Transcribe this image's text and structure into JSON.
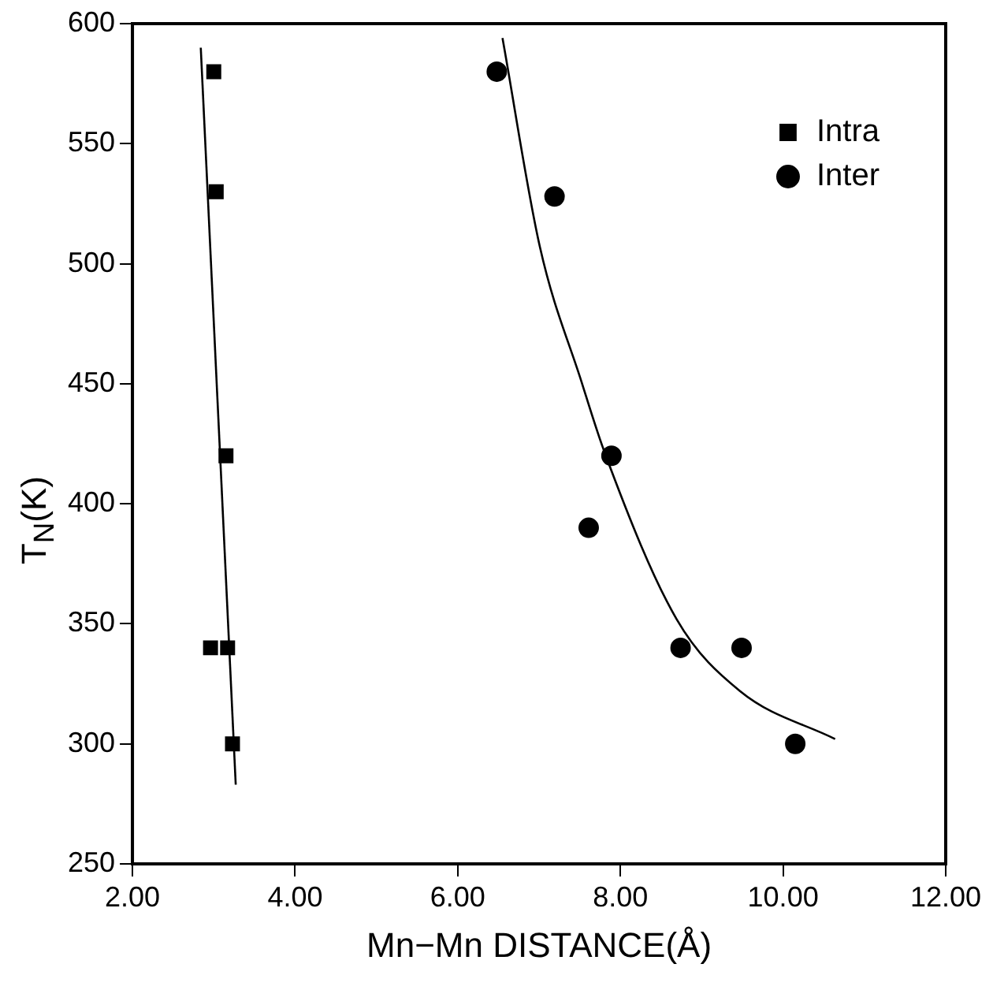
{
  "chart_data": {
    "type": "scatter",
    "xlabel": "Mn−Mn DISTANCE(Å)",
    "ylabel": "T$_{N}$(K)",
    "xlim": [
      2,
      12
    ],
    "ylim": [
      250,
      600
    ],
    "xticks": [
      {
        "value": 2,
        "label": "2.00"
      },
      {
        "value": 4,
        "label": "4.00"
      },
      {
        "value": 6,
        "label": "6.00"
      },
      {
        "value": 8,
        "label": "8.00"
      },
      {
        "value": 10,
        "label": "10.00"
      },
      {
        "value": 12,
        "label": "12.00"
      }
    ],
    "yticks": [
      250,
      300,
      350,
      400,
      450,
      500,
      550,
      600
    ],
    "grid": false,
    "legend": "top right",
    "series": [
      {
        "name": "Intra",
        "type": "scatter",
        "marker": "square",
        "color": "#000000",
        "x": [
          3.0,
          3.03,
          3.15,
          2.96,
          3.17,
          3.23
        ],
        "values": [
          580,
          530,
          420,
          340,
          340,
          300
        ]
      },
      {
        "name": "Inter",
        "type": "scatter",
        "marker": "circle",
        "color": "#000000",
        "x": [
          6.48,
          7.19,
          7.89,
          7.61,
          8.74,
          9.49,
          10.15
        ],
        "values": [
          580,
          528,
          420,
          390,
          340,
          340,
          300
        ]
      },
      {
        "type": "line",
        "marker": "none",
        "line_style": "solid",
        "color": "#000000",
        "x": [
          2.84,
          3.27
        ],
        "values": [
          590,
          283
        ]
      },
      {
        "type": "line",
        "marker": "none",
        "line_style": "solid",
        "color": "#000000",
        "x": [
          6.55,
          7.01,
          7.52,
          7.81,
          8.69,
          9.47,
          10.64
        ],
        "values": [
          594,
          507,
          451,
          421,
          352,
          322,
          302
        ]
      }
    ]
  }
}
